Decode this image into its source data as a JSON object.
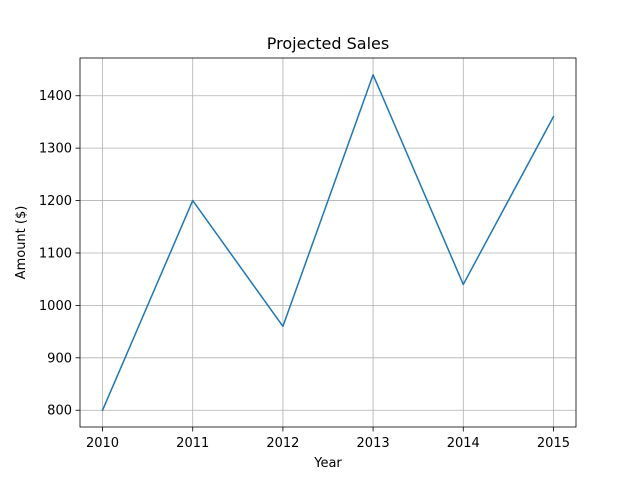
{
  "chart_data": {
    "type": "line",
    "title": "Projected Sales",
    "xlabel": "Year",
    "ylabel": "Amount ($)",
    "x": [
      2010,
      2011,
      2012,
      2013,
      2014,
      2015
    ],
    "series": [
      {
        "values": [
          800,
          1200,
          960,
          1440,
          1040,
          1360
        ],
        "color": "#1f77b4"
      }
    ],
    "xlim": [
      2009.75,
      2015.25
    ],
    "ylim": [
      768,
      1472
    ],
    "xticks": [
      "2010",
      "2011",
      "2012",
      "2013",
      "2014",
      "2015"
    ],
    "yticks": [
      "800",
      "900",
      "1000",
      "1100",
      "1200",
      "1300",
      "1400"
    ],
    "grid": true
  }
}
